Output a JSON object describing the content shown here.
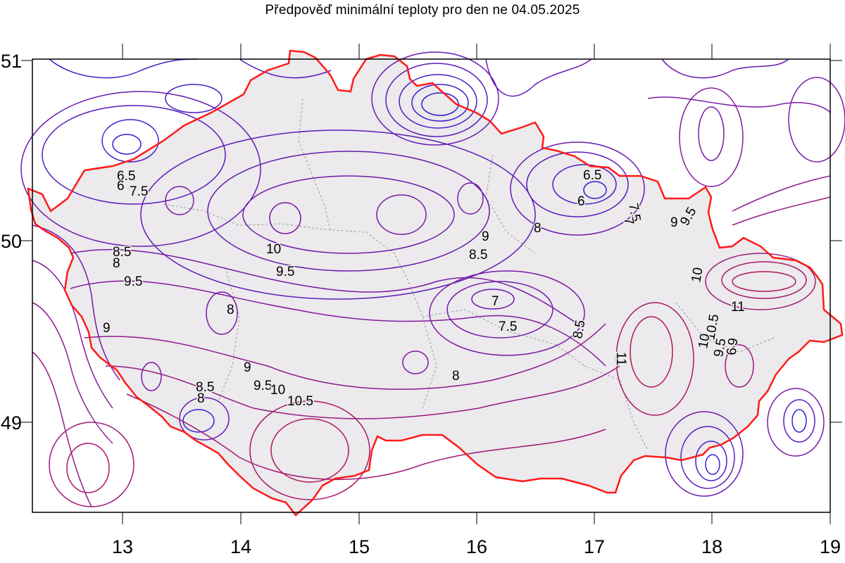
{
  "title": "Předpověď minimální teploty pro den ne 04.05.2025",
  "x_ticks": [
    "13",
    "14",
    "15",
    "16",
    "17",
    "18",
    "19"
  ],
  "y_ticks": [
    "51",
    "50",
    "49"
  ],
  "contour_labels": [
    "6.5",
    "6",
    "7.5",
    "6.5",
    "6",
    "7.5",
    "7",
    "8",
    "8",
    "8.5",
    "9",
    "9.5",
    "9",
    "10",
    "9.5",
    "8",
    "9",
    "9.5",
    "10",
    "10.5",
    "8.5",
    "8",
    "9",
    "8.5",
    "7",
    "7.5",
    "8",
    "8.5",
    "11",
    "9",
    "9.5",
    "10",
    "11",
    "10.5",
    "10",
    "9.5",
    "9"
  ],
  "colors": {
    "land_fill": "#eceaec",
    "border": "#ff1a1a",
    "district_lines": "#9a9a9a",
    "contour_cold": "#3a1ccf",
    "contour_mid": "#7a1aa6",
    "contour_warm": "#b0185a"
  },
  "map_type": "temperature isoline map with country border"
}
